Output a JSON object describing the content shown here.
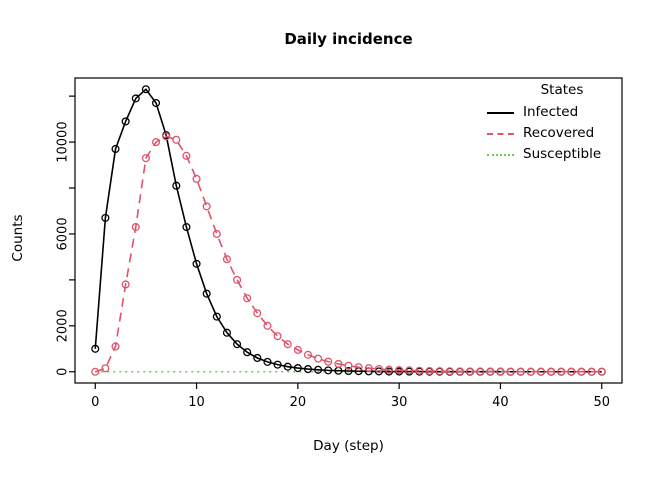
{
  "chart_data": {
    "type": "line",
    "title": "Daily incidence",
    "xlabel": "Day (step)",
    "ylabel": "Counts",
    "legend_title": "States",
    "legend_position": "top-right",
    "grid": false,
    "xlim": [
      -2,
      52
    ],
    "ylim": [
      -490,
      12790
    ],
    "x_ticks": [
      0,
      10,
      20,
      30,
      40,
      50
    ],
    "y_ticks": [
      {
        "value": 0,
        "label": "0"
      },
      {
        "value": 2000,
        "label": "2000"
      },
      {
        "value": 4000,
        "label": ""
      },
      {
        "value": 6000,
        "label": "6000"
      },
      {
        "value": 8000,
        "label": ""
      },
      {
        "value": 10000,
        "label": "10000"
      },
      {
        "value": 12000,
        "label": ""
      }
    ],
    "x": [
      0,
      1,
      2,
      3,
      4,
      5,
      6,
      7,
      8,
      9,
      10,
      11,
      12,
      13,
      14,
      15,
      16,
      17,
      18,
      19,
      20,
      21,
      22,
      23,
      24,
      25,
      26,
      27,
      28,
      29,
      30,
      31,
      32,
      33,
      34,
      35,
      36,
      37,
      38,
      39,
      40,
      41,
      42,
      43,
      44,
      45,
      46,
      47,
      48,
      49,
      50
    ],
    "series": [
      {
        "name": "Infected",
        "color": "#000000",
        "linestyle": "solid",
        "marker": "open-circle",
        "z": 1,
        "values": [
          1000,
          6700,
          9700,
          10900,
          11900,
          12300,
          11700,
          10300,
          8100,
          6300,
          4700,
          3400,
          2400,
          1700,
          1200,
          850,
          600,
          430,
          310,
          220,
          160,
          115,
          85,
          60,
          45,
          33,
          25,
          18,
          14,
          10,
          8,
          6,
          5,
          4,
          3,
          2,
          2,
          1,
          1,
          1,
          1,
          0,
          0,
          0,
          0,
          0,
          0,
          0,
          0,
          0,
          0
        ]
      },
      {
        "name": "Recovered",
        "color": "#DF536B",
        "linestyle": "dashed",
        "marker": "open-circle",
        "z": 2,
        "values": [
          0,
          150,
          1100,
          3800,
          6300,
          9300,
          10000,
          10250,
          10100,
          9400,
          8400,
          7200,
          6000,
          4900,
          4000,
          3200,
          2550,
          2000,
          1550,
          1200,
          950,
          740,
          570,
          440,
          340,
          260,
          200,
          155,
          120,
          90,
          70,
          55,
          42,
          32,
          25,
          19,
          15,
          11,
          9,
          7,
          5,
          4,
          3,
          2,
          2,
          1,
          1,
          1,
          1,
          0,
          0
        ]
      },
      {
        "name": "Susceptible",
        "color": "#61D04F",
        "linestyle": "dotted",
        "marker": "none",
        "z": 0,
        "values": [
          0,
          0,
          0,
          0,
          0,
          0,
          0,
          0,
          0,
          0,
          0,
          0,
          0,
          0,
          0,
          0,
          0,
          0,
          0,
          0,
          0,
          0,
          0,
          0,
          0,
          0,
          0,
          0,
          0,
          0,
          0,
          0,
          0,
          0,
          0,
          0,
          0,
          0,
          0,
          0,
          0,
          0,
          0,
          0,
          0,
          0,
          0,
          0,
          0,
          0,
          0
        ]
      }
    ]
  }
}
